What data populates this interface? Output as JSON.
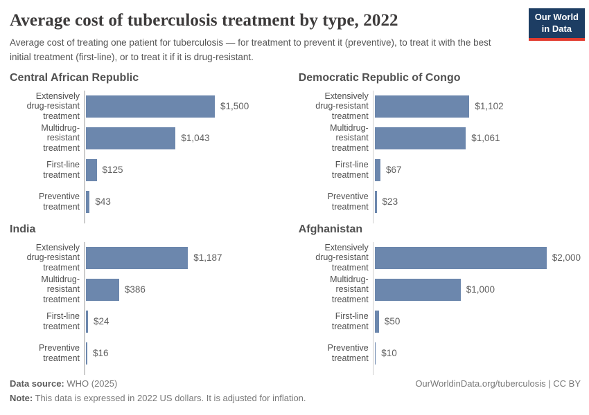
{
  "header": {
    "title": "Average cost of tuberculosis treatment by type, 2022",
    "subtitle": "Average cost of treating one patient for tuberculosis — for treatment to prevent it (preventive), to treat it with the best initial treatment (first-line), or to treat it if it is drug-resistant.",
    "logo": {
      "line1": "Our World",
      "line2": "in Data",
      "bg_color": "#1d3d63",
      "stripe_color": "#e23b2e"
    }
  },
  "chart_data": {
    "type": "bar",
    "orientation": "horizontal",
    "unit": "2022 US dollars",
    "categories": [
      "Extensively drug-resistant treatment",
      "Multidrug-resistant treatment",
      "First-line treatment",
      "Preventive treatment"
    ],
    "category_label_lines": [
      [
        "Extensively",
        "drug-resistant",
        "treatment"
      ],
      [
        "Multidrug-resistant",
        "treatment"
      ],
      [
        "First-line treatment"
      ],
      [
        "Preventive",
        "treatment"
      ]
    ],
    "xlim": [
      0,
      2000
    ],
    "grid": false,
    "legend": "none",
    "bar_color": "#6c87ad",
    "axis_color": "#cccccc",
    "panels": [
      {
        "country": "Central African Republic",
        "values": [
          1500,
          1043,
          125,
          43
        ],
        "value_labels": [
          "$1,500",
          "$1,043",
          "$125",
          "$43"
        ]
      },
      {
        "country": "Democratic Republic of Congo",
        "values": [
          1102,
          1061,
          67,
          23
        ],
        "value_labels": [
          "$1,102",
          "$1,061",
          "$67",
          "$23"
        ]
      },
      {
        "country": "India",
        "values": [
          1187,
          386,
          24,
          16
        ],
        "value_labels": [
          "$1,187",
          "$386",
          "$24",
          "$16"
        ]
      },
      {
        "country": "Afghanistan",
        "values": [
          2000,
          1000,
          50,
          10
        ],
        "value_labels": [
          "$2,000",
          "$1,000",
          "$50",
          "$10"
        ]
      }
    ]
  },
  "footer": {
    "source_label": "Data source:",
    "source_text": " WHO (2025)",
    "note_label": "Note:",
    "note_text": " This data is expressed in 2022 US dollars. It is adjusted for inflation.",
    "credit_url": "OurWorldinData.org/tuberculosis",
    "credit_separator": " | ",
    "credit_license": "CC BY"
  }
}
